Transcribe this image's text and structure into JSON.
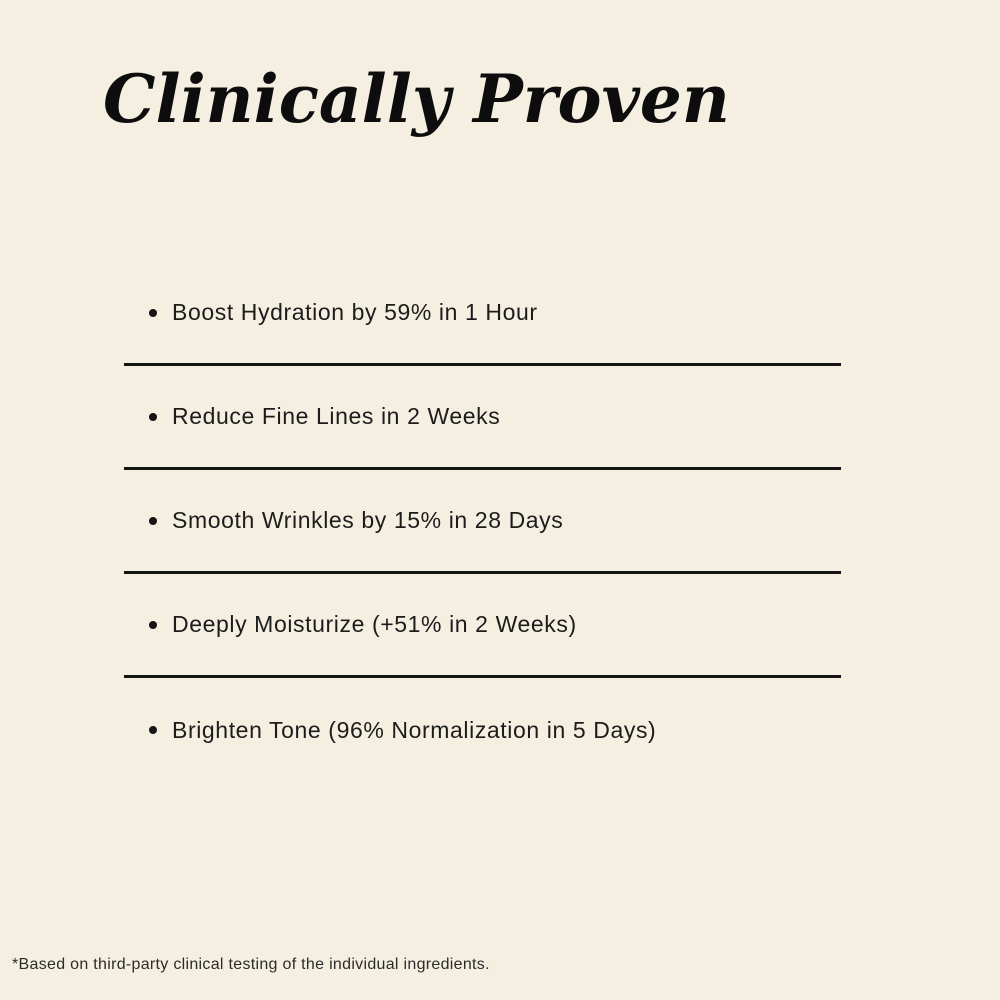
{
  "title": "Clinically Proven",
  "list": {
    "items": [
      "Boost Hydration by 59% in 1 Hour",
      "Reduce Fine Lines in 2 Weeks",
      "Smooth Wrinkles by 15% in 28 Days",
      "Deeply Moisturize (+51% in 2 Weeks)",
      "Brighten Tone (96% Normalization in 5 Days)"
    ]
  },
  "footnote": "*Based on third-party clinical testing of the individual ingredients.",
  "colors": {
    "background": "#F5EFE2",
    "title_text": "#0D0D0D",
    "body_text": "#1C1C1C",
    "divider": "#141414"
  }
}
